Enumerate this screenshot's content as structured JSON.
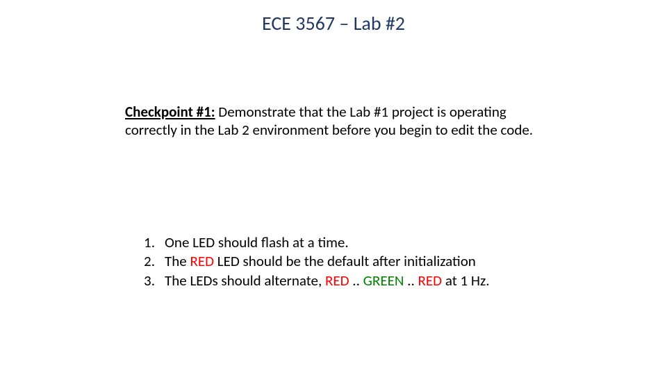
{
  "title": "ECE 3567 – Lab #2",
  "title_color": "#1f3864",
  "title_fontsize": 28,
  "checkpoint": {
    "label": "Checkpoint #1:",
    "text": " Demonstrate that the Lab #1 project  is operating correctly in the Lab 2 environment before you begin to edit the code."
  },
  "list": {
    "items": [
      {
        "num": "1.",
        "segments": [
          {
            "text": "One LED should flash at a time.",
            "color": "#000000"
          }
        ]
      },
      {
        "num": "2.",
        "segments": [
          {
            "text": "The ",
            "color": "#000000"
          },
          {
            "text": "RED",
            "color": "#ff0000"
          },
          {
            "text": " LED should be the default after initialization",
            "color": "#000000"
          }
        ]
      },
      {
        "num": "3.",
        "segments": [
          {
            "text": "The LEDs should alternate, ",
            "color": "#000000"
          },
          {
            "text": "RED",
            "color": "#ff0000"
          },
          {
            "text": " .. ",
            "color": "#000000"
          },
          {
            "text": "GREEN",
            "color": "#008000"
          },
          {
            "text": " .. ",
            "color": "#000000"
          },
          {
            "text": "RED ",
            "color": "#ff0000"
          },
          {
            "text": "  at 1 Hz.",
            "color": "#000000"
          }
        ]
      }
    ]
  },
  "body_fontsize": 21,
  "background_color": "#ffffff"
}
